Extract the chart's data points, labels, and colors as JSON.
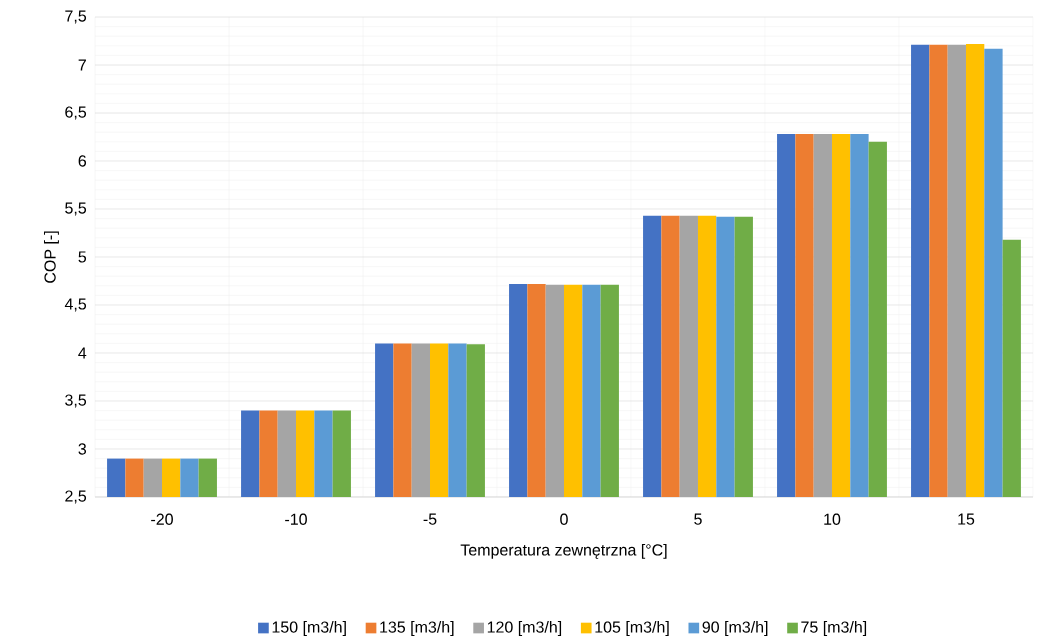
{
  "chart_data": {
    "type": "bar",
    "xlabel": "Temperatura zewnętrzna [°C]",
    "ylabel": "COP [-]",
    "categories": [
      "-20",
      "-10",
      "-5",
      "0",
      "5",
      "10",
      "15"
    ],
    "series": [
      {
        "name": "150 [m3/h]",
        "color": "#4472c4",
        "values": [
          2.9,
          3.4,
          4.1,
          4.72,
          5.43,
          6.28,
          7.21
        ]
      },
      {
        "name": "135 [m3/h]",
        "color": "#ed7d31",
        "values": [
          2.9,
          3.4,
          4.1,
          4.72,
          5.43,
          6.28,
          7.21
        ]
      },
      {
        "name": "120 [m3/h]",
        "color": "#a5a5a5",
        "values": [
          2.9,
          3.4,
          4.1,
          4.71,
          5.43,
          6.28,
          7.21
        ]
      },
      {
        "name": "105 [m3/h]",
        "color": "#ffc000",
        "values": [
          2.9,
          3.4,
          4.1,
          4.71,
          5.43,
          6.28,
          7.22
        ]
      },
      {
        "name": "90 [m3/h]",
        "color": "#5b9bd5",
        "values": [
          2.9,
          3.4,
          4.1,
          4.71,
          5.42,
          6.28,
          7.17
        ]
      },
      {
        "name": "75 [m3/h]",
        "color": "#70ad47",
        "values": [
          2.9,
          3.4,
          4.09,
          4.71,
          5.42,
          6.2,
          5.18
        ]
      }
    ],
    "ylim": [
      2.5,
      7.5
    ],
    "yticks": [
      {
        "value": 2.5,
        "label": "2,5"
      },
      3,
      {
        "value": 3.5,
        "label": "3,5"
      },
      4,
      {
        "value": 4.5,
        "label": "4,5"
      },
      5,
      {
        "value": 5.5,
        "label": "5,5"
      },
      6,
      {
        "value": 6.5,
        "label": "6,5"
      },
      7,
      {
        "value": 7.5,
        "label": "7,5"
      }
    ],
    "grid": true,
    "legend": "bottom"
  }
}
